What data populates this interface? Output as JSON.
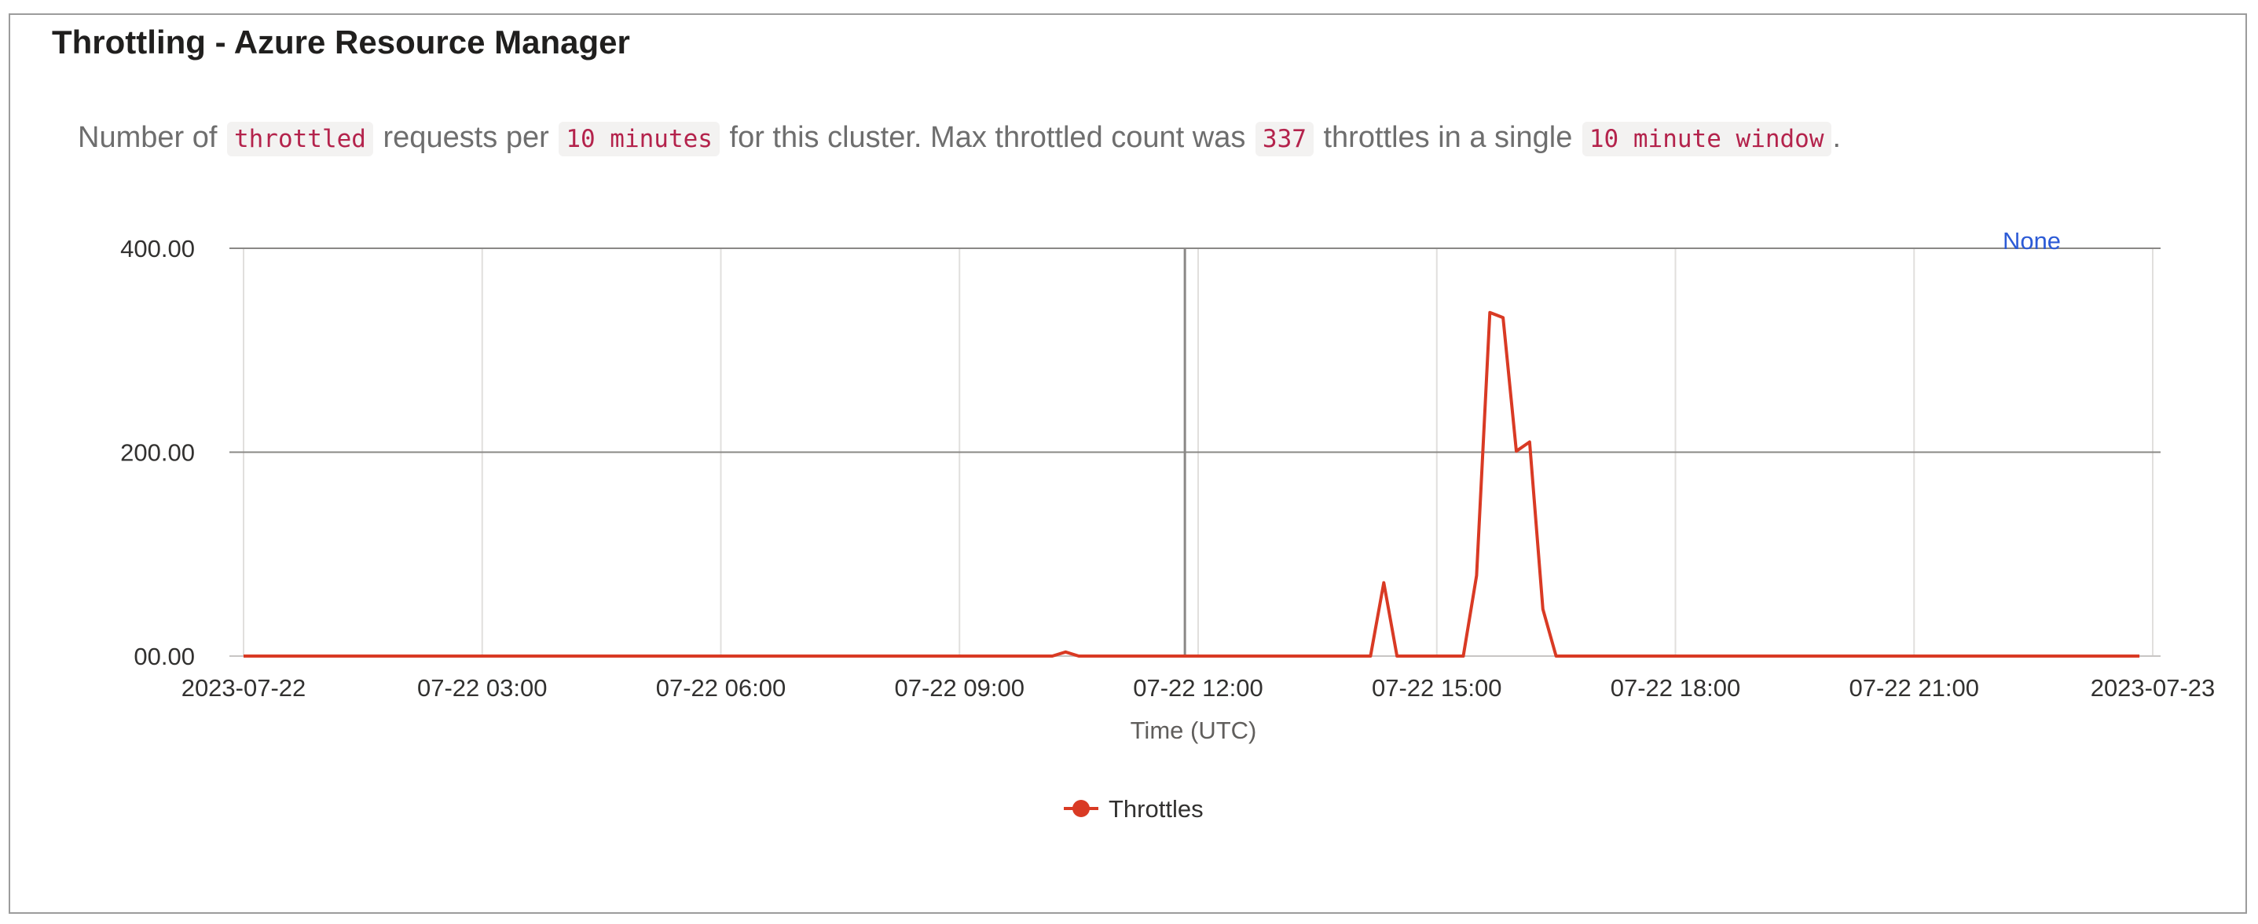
{
  "card": {
    "title": "Throttling - Azure Resource Manager",
    "description": {
      "t1": "Number of",
      "c1": "throttled",
      "t2": "requests per",
      "c2": "10 minutes",
      "t3": "for this cluster. Max throttled count was",
      "c3": "337",
      "t4": "throttles in a single",
      "c4": "10 minute window",
      "t5": "."
    }
  },
  "colors": {
    "series": "#d93a24",
    "none_label": "#2d5bd6",
    "grid_major": "#8a8886",
    "grid_minor": "#e1dfdd",
    "crosshair": "#8a8886"
  },
  "chart_data": {
    "type": "line",
    "xlabel": "Time (UTC)",
    "ylabel": "",
    "ylim": [
      0,
      400
    ],
    "y_ticks": [
      0,
      200,
      400
    ],
    "y_tick_labels": [
      "00.00",
      "200.00",
      "400.00"
    ],
    "x_range": [
      "2023-07-22 00:00",
      "2023-07-23 00:00"
    ],
    "x_ticks": [
      {
        "at": "2023-07-22 00:00",
        "label": "2023-07-22"
      },
      {
        "at": "2023-07-22 03:00",
        "label": "07-22 03:00"
      },
      {
        "at": "2023-07-22 06:00",
        "label": "07-22 06:00"
      },
      {
        "at": "2023-07-22 09:00",
        "label": "07-22 09:00"
      },
      {
        "at": "2023-07-22 12:00",
        "label": "07-22 12:00"
      },
      {
        "at": "2023-07-22 15:00",
        "label": "07-22 15:00"
      },
      {
        "at": "2023-07-22 18:00",
        "label": "07-22 18:00"
      },
      {
        "at": "2023-07-22 21:00",
        "label": "07-22 21:00"
      },
      {
        "at": "2023-07-23 00:00",
        "label": "2023-07-23"
      }
    ],
    "crosshair_x": "2023-07-22 11:50",
    "none_label": "None",
    "legend_position": "bottom",
    "series": [
      {
        "name": "Throttles",
        "points": [
          [
            "2023-07-22 00:00",
            0
          ],
          [
            "2023-07-22 10:10",
            0
          ],
          [
            "2023-07-22 10:20",
            4
          ],
          [
            "2023-07-22 10:30",
            0
          ],
          [
            "2023-07-22 14:10",
            0
          ],
          [
            "2023-07-22 14:20",
            72
          ],
          [
            "2023-07-22 14:30",
            0
          ],
          [
            "2023-07-22 15:20",
            0
          ],
          [
            "2023-07-22 15:30",
            79
          ],
          [
            "2023-07-22 15:40",
            337
          ],
          [
            "2023-07-22 15:50",
            332
          ],
          [
            "2023-07-22 16:00",
            201
          ],
          [
            "2023-07-22 16:10",
            210
          ],
          [
            "2023-07-22 16:20",
            46
          ],
          [
            "2023-07-22 16:30",
            0
          ],
          [
            "2023-07-22 23:50",
            0
          ]
        ]
      }
    ]
  }
}
